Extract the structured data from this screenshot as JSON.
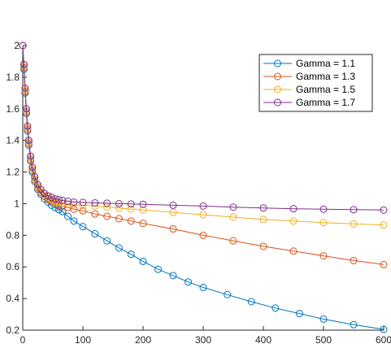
{
  "chart_data": {
    "type": "line",
    "title": "",
    "xlabel": "",
    "ylabel": "",
    "xlim": [
      0,
      600
    ],
    "ylim": [
      0.2,
      2
    ],
    "xticks": [
      0,
      100,
      200,
      300,
      400,
      500,
      600
    ],
    "yticks": [
      0.2,
      0.4,
      0.6,
      0.8,
      1,
      1.2,
      1.4,
      1.6,
      1.8,
      2
    ],
    "grid": false,
    "legend_position": "top-right",
    "series": [
      {
        "name": "Gamma = 1.1",
        "color": "#0072BD",
        "points": [
          [
            0,
            2
          ],
          [
            2,
            1.85
          ],
          [
            4,
            1.7
          ],
          [
            6,
            1.57
          ],
          [
            8,
            1.46
          ],
          [
            10,
            1.37
          ],
          [
            13,
            1.27
          ],
          [
            16,
            1.2
          ],
          [
            20,
            1.14
          ],
          [
            25,
            1.09
          ],
          [
            30,
            1.06
          ],
          [
            36,
            1.03
          ],
          [
            42,
            1.01
          ],
          [
            48,
            0.99
          ],
          [
            54,
            0.975
          ],
          [
            60,
            0.962
          ],
          [
            66,
            0.95
          ],
          [
            75,
            0.92
          ],
          [
            85,
            0.89
          ],
          [
            100,
            0.855
          ],
          [
            120,
            0.81
          ],
          [
            140,
            0.765
          ],
          [
            160,
            0.72
          ],
          [
            180,
            0.68
          ],
          [
            200,
            0.635
          ],
          [
            225,
            0.585
          ],
          [
            250,
            0.545
          ],
          [
            275,
            0.505
          ],
          [
            300,
            0.47
          ],
          [
            340,
            0.425
          ],
          [
            380,
            0.38
          ],
          [
            420,
            0.34
          ],
          [
            460,
            0.305
          ],
          [
            500,
            0.27
          ],
          [
            550,
            0.235
          ],
          [
            600,
            0.205
          ]
        ]
      },
      {
        "name": "Gamma = 1.3",
        "color": "#D95319",
        "points": [
          [
            0,
            2
          ],
          [
            2,
            1.86
          ],
          [
            4,
            1.71
          ],
          [
            6,
            1.58
          ],
          [
            8,
            1.47
          ],
          [
            10,
            1.38
          ],
          [
            13,
            1.28
          ],
          [
            16,
            1.21
          ],
          [
            20,
            1.15
          ],
          [
            25,
            1.1
          ],
          [
            30,
            1.07
          ],
          [
            36,
            1.045
          ],
          [
            42,
            1.025
          ],
          [
            48,
            1.01
          ],
          [
            54,
            1
          ],
          [
            60,
            0.99
          ],
          [
            66,
            0.982
          ],
          [
            75,
            0.975
          ],
          [
            85,
            0.965
          ],
          [
            100,
            0.955
          ],
          [
            120,
            0.935
          ],
          [
            140,
            0.92
          ],
          [
            160,
            0.905
          ],
          [
            180,
            0.89
          ],
          [
            200,
            0.875
          ],
          [
            250,
            0.84
          ],
          [
            300,
            0.8
          ],
          [
            350,
            0.765
          ],
          [
            400,
            0.73
          ],
          [
            450,
            0.7
          ],
          [
            500,
            0.67
          ],
          [
            550,
            0.64
          ],
          [
            600,
            0.615
          ]
        ]
      },
      {
        "name": "Gamma = 1.5",
        "color": "#EDB120",
        "points": [
          [
            0,
            2
          ],
          [
            2,
            1.87
          ],
          [
            4,
            1.72
          ],
          [
            6,
            1.59
          ],
          [
            8,
            1.48
          ],
          [
            10,
            1.39
          ],
          [
            13,
            1.29
          ],
          [
            16,
            1.22
          ],
          [
            20,
            1.16
          ],
          [
            25,
            1.11
          ],
          [
            30,
            1.08
          ],
          [
            36,
            1.055
          ],
          [
            42,
            1.04
          ],
          [
            48,
            1.025
          ],
          [
            54,
            1.015
          ],
          [
            60,
            1.008
          ],
          [
            66,
            1.002
          ],
          [
            75,
            0.998
          ],
          [
            85,
            0.993
          ],
          [
            100,
            0.99
          ],
          [
            120,
            0.985
          ],
          [
            140,
            0.978
          ],
          [
            160,
            0.972
          ],
          [
            180,
            0.966
          ],
          [
            200,
            0.96
          ],
          [
            250,
            0.945
          ],
          [
            300,
            0.93
          ],
          [
            350,
            0.915
          ],
          [
            400,
            0.9
          ],
          [
            450,
            0.89
          ],
          [
            500,
            0.88
          ],
          [
            550,
            0.872
          ],
          [
            600,
            0.865
          ]
        ]
      },
      {
        "name": "Gamma = 1.7",
        "color": "#7E2F8E",
        "points": [
          [
            0,
            2
          ],
          [
            2,
            1.88
          ],
          [
            4,
            1.73
          ],
          [
            6,
            1.6
          ],
          [
            8,
            1.49
          ],
          [
            10,
            1.4
          ],
          [
            13,
            1.3
          ],
          [
            16,
            1.23
          ],
          [
            20,
            1.17
          ],
          [
            25,
            1.12
          ],
          [
            30,
            1.09
          ],
          [
            36,
            1.065
          ],
          [
            42,
            1.05
          ],
          [
            48,
            1.04
          ],
          [
            54,
            1.03
          ],
          [
            60,
            1.025
          ],
          [
            66,
            1.02
          ],
          [
            75,
            1.015
          ],
          [
            85,
            1.01
          ],
          [
            100,
            1.008
          ],
          [
            120,
            1.005
          ],
          [
            140,
            1.003
          ],
          [
            160,
            1
          ],
          [
            180,
            0.998
          ],
          [
            200,
            0.996
          ],
          [
            250,
            0.99
          ],
          [
            300,
            0.985
          ],
          [
            350,
            0.978
          ],
          [
            400,
            0.973
          ],
          [
            450,
            0.968
          ],
          [
            500,
            0.965
          ],
          [
            550,
            0.962
          ],
          [
            600,
            0.96
          ]
        ]
      }
    ]
  }
}
